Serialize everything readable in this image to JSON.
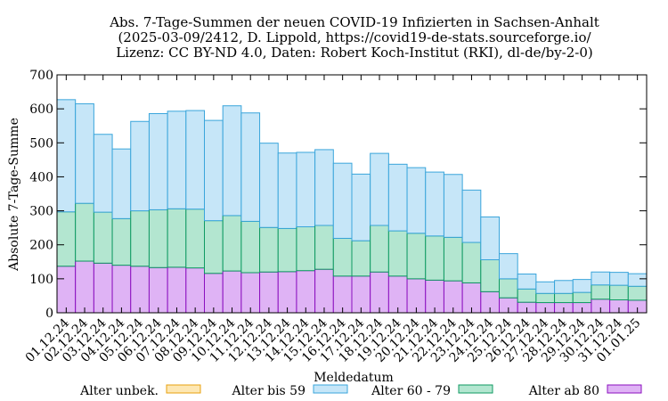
{
  "chart_data": {
    "type": "bar",
    "stacked": true,
    "title": [
      "Abs. 7-Tage-Summen der neuen COVID-19 Infizierten in Sachsen-Anhalt",
      "(2025-03-09/2412, D. Lippold, https://covid19-de-stats.sourceforge.io/",
      "Lizenz: CC BY-ND 4.0, Daten: Robert Koch-Institut (RKI), dl-de/by-2-0)"
    ],
    "xlabel": "Meldedatum",
    "ylabel": "Absolute 7-Tage-Summe",
    "ylim": [
      0,
      700
    ],
    "yticks": [
      0,
      100,
      200,
      300,
      400,
      500,
      600,
      700
    ],
    "categories": [
      "01.12.24",
      "02.12.24",
      "03.12.24",
      "04.12.24",
      "05.12.24",
      "06.12.24",
      "07.12.24",
      "08.12.24",
      "09.12.24",
      "10.12.24",
      "11.12.24",
      "12.12.24",
      "13.12.24",
      "14.12.24",
      "15.12.24",
      "16.12.24",
      "17.12.24",
      "18.12.24",
      "19.12.24",
      "20.12.24",
      "21.12.24",
      "22.12.24",
      "23.12.24",
      "24.12.24",
      "25.12.24",
      "26.12.24",
      "27.12.24",
      "28.12.24",
      "29.12.24",
      "30.12.24",
      "31.12.24",
      "01.01.25"
    ],
    "series": [
      {
        "name": "Alter ab 80",
        "fill": "#dfb3f5",
        "stroke": "#8b0fbf",
        "values": [
          137,
          152,
          146,
          140,
          137,
          133,
          134,
          132,
          116,
          123,
          118,
          120,
          121,
          124,
          128,
          108,
          108,
          120,
          108,
          100,
          96,
          94,
          88,
          62,
          44,
          31,
          30,
          30,
          30,
          40,
          38,
          37
        ]
      },
      {
        "name": "Alter 60 - 79",
        "fill": "#b3e6d0",
        "stroke": "#0f9a62",
        "values": [
          160,
          170,
          150,
          137,
          163,
          170,
          172,
          173,
          155,
          163,
          151,
          131,
          127,
          129,
          129,
          111,
          104,
          137,
          133,
          134,
          130,
          128,
          119,
          94,
          56,
          39,
          27,
          27,
          30,
          42,
          43,
          41
        ]
      },
      {
        "name": "Alter bis 59",
        "fill": "#c6e6f8",
        "stroke": "#3aa5db",
        "values": [
          330,
          293,
          229,
          205,
          263,
          283,
          287,
          290,
          295,
          323,
          319,
          248,
          222,
          219,
          223,
          221,
          196,
          212,
          196,
          193,
          188,
          185,
          154,
          126,
          74,
          44,
          34,
          38,
          38,
          38,
          38,
          37
        ]
      },
      {
        "name": "Alter unbek.",
        "fill": "#fde7b3",
        "stroke": "#e8a20f",
        "values": [
          0,
          0,
          0,
          0,
          0,
          0,
          0,
          0,
          0,
          0,
          0,
          0,
          0,
          0,
          0,
          0,
          0,
          0,
          0,
          0,
          0,
          0,
          0,
          0,
          0,
          0,
          0,
          0,
          0,
          0,
          0,
          0
        ]
      }
    ],
    "legend": [
      {
        "name": "Alter unbek.",
        "fill": "#fde7b3",
        "stroke": "#e8a20f"
      },
      {
        "name": "Alter bis 59",
        "fill": "#c6e6f8",
        "stroke": "#3aa5db"
      },
      {
        "name": "Alter 60 - 79",
        "fill": "#b3e6d0",
        "stroke": "#0f9a62"
      },
      {
        "name": "Alter ab 80",
        "fill": "#dfb3f5",
        "stroke": "#8b0fbf"
      }
    ],
    "legend_position": "bottom"
  }
}
